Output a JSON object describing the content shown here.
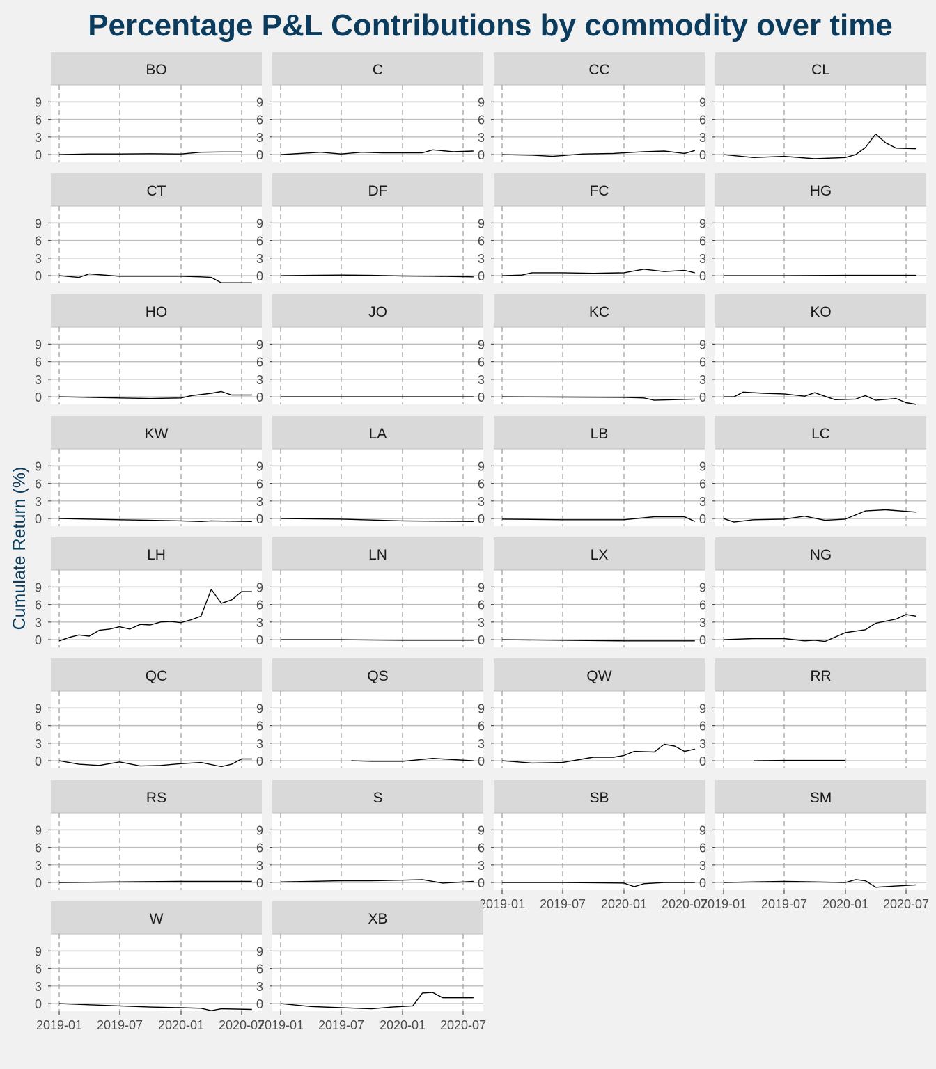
{
  "chart_data": {
    "type": "line",
    "title": "Percentage P&L Contributions by commodity over time",
    "ylabel": "Cumulate Return (%)",
    "xlabel": "",
    "y_ticks": [
      "0",
      "3",
      "6",
      "9"
    ],
    "x_ticks": [
      "2019-01",
      "2019-07",
      "2020-01",
      "2020-07"
    ],
    "grid": true,
    "colors": {
      "title": "#0b3c5d",
      "ylabel": "#0b3c5d",
      "line": "#000000",
      "strip": "#d9d9d9",
      "panel": "#ffffff"
    },
    "panels": [
      {
        "name": "BO",
        "x": [
          "2019-01",
          "2019-04",
          "2019-07",
          "2019-10",
          "2020-01",
          "2020-03",
          "2020-05",
          "2020-07"
        ],
        "y": [
          0,
          0.1,
          0.1,
          0.15,
          0.1,
          0.4,
          0.45,
          0.45
        ]
      },
      {
        "name": "C",
        "x": [
          "2019-01",
          "2019-03",
          "2019-05",
          "2019-07",
          "2019-09",
          "2019-11",
          "2020-01",
          "2020-03",
          "2020-04",
          "2020-06",
          "2020-08"
        ],
        "y": [
          0,
          0.2,
          0.4,
          0.1,
          0.4,
          0.3,
          0.3,
          0.3,
          0.8,
          0.5,
          0.6
        ]
      },
      {
        "name": "CC",
        "x": [
          "2019-01",
          "2019-04",
          "2019-06",
          "2019-09",
          "2019-12",
          "2020-03",
          "2020-05",
          "2020-07",
          "2020-08"
        ],
        "y": [
          0,
          -0.1,
          -0.3,
          0.1,
          0.2,
          0.5,
          0.6,
          0.2,
          0.7
        ]
      },
      {
        "name": "CL",
        "x": [
          "2019-01",
          "2019-04",
          "2019-07",
          "2019-10",
          "2020-01",
          "2020-02",
          "2020-03",
          "2020-04",
          "2020-05",
          "2020-06",
          "2020-08"
        ],
        "y": [
          0,
          -0.5,
          -0.3,
          -0.7,
          -0.5,
          0,
          1.2,
          3.5,
          2,
          1.1,
          1
        ]
      },
      {
        "name": "CT",
        "x": [
          "2019-01",
          "2019-03",
          "2019-04",
          "2019-07",
          "2019-10",
          "2020-01",
          "2020-03",
          "2020-04",
          "2020-05",
          "2020-08"
        ],
        "y": [
          0,
          -0.3,
          0.3,
          -0.1,
          -0.1,
          -0.1,
          -0.2,
          -0.3,
          -1.2,
          -1.2
        ]
      },
      {
        "name": "DF",
        "x": [
          "2019-01",
          "2019-04",
          "2019-07",
          "2019-10",
          "2020-01",
          "2020-04",
          "2020-08"
        ],
        "y": [
          0,
          0.05,
          0.1,
          0.05,
          -0.05,
          -0.1,
          -0.2
        ]
      },
      {
        "name": "FC",
        "x": [
          "2019-01",
          "2019-03",
          "2019-04",
          "2019-07",
          "2019-10",
          "2020-01",
          "2020-03",
          "2020-05",
          "2020-07",
          "2020-08"
        ],
        "y": [
          0,
          0.1,
          0.5,
          0.5,
          0.4,
          0.5,
          1.1,
          0.7,
          0.9,
          0.5
        ]
      },
      {
        "name": "HG",
        "x": [
          "2019-01",
          "2019-07",
          "2020-01",
          "2020-08"
        ],
        "y": [
          0,
          0,
          0.05,
          0.05
        ]
      },
      {
        "name": "HO",
        "x": [
          "2019-01",
          "2019-07",
          "2019-10",
          "2020-01",
          "2020-02",
          "2020-04",
          "2020-05",
          "2020-06",
          "2020-08"
        ],
        "y": [
          0,
          -0.2,
          -0.3,
          -0.2,
          0.2,
          0.6,
          0.9,
          0.3,
          0.3
        ]
      },
      {
        "name": "JO",
        "x": [
          "2019-01",
          "2019-07",
          "2020-01",
          "2020-08"
        ],
        "y": [
          0,
          0,
          0,
          0
        ]
      },
      {
        "name": "KC",
        "x": [
          "2019-01",
          "2019-07",
          "2020-01",
          "2020-03",
          "2020-04",
          "2020-08"
        ],
        "y": [
          0,
          -0.05,
          -0.1,
          -0.2,
          -0.6,
          -0.4
        ]
      },
      {
        "name": "KO",
        "x": [
          "2019-01",
          "2019-02",
          "2019-03",
          "2019-05",
          "2019-07",
          "2019-09",
          "2019-10",
          "2019-12",
          "2020-02",
          "2020-03",
          "2020-04",
          "2020-06",
          "2020-07",
          "2020-08"
        ],
        "y": [
          0,
          0,
          0.8,
          0.6,
          0.5,
          0.1,
          0.7,
          -0.5,
          -0.4,
          0.2,
          -0.6,
          -0.3,
          -1,
          -1.3
        ]
      },
      {
        "name": "KW",
        "x": [
          "2019-01",
          "2019-04",
          "2019-07",
          "2019-10",
          "2020-01",
          "2020-03",
          "2020-04",
          "2020-08"
        ],
        "y": [
          0,
          -0.1,
          -0.2,
          -0.3,
          -0.4,
          -0.5,
          -0.4,
          -0.5
        ]
      },
      {
        "name": "LA",
        "x": [
          "2019-01",
          "2019-07",
          "2020-01",
          "2020-08"
        ],
        "y": [
          0,
          -0.1,
          -0.4,
          -0.5
        ]
      },
      {
        "name": "LB",
        "x": [
          "2019-01",
          "2019-07",
          "2020-01",
          "2020-04",
          "2020-07",
          "2020-08"
        ],
        "y": [
          -0.1,
          -0.2,
          -0.2,
          0.3,
          0.3,
          -0.5
        ]
      },
      {
        "name": "LC",
        "x": [
          "2019-01",
          "2019-02",
          "2019-04",
          "2019-07",
          "2019-09",
          "2019-11",
          "2020-01",
          "2020-03",
          "2020-05",
          "2020-08"
        ],
        "y": [
          0,
          -0.6,
          -0.2,
          -0.1,
          0.4,
          -0.3,
          -0.1,
          1.3,
          1.5,
          1.1
        ]
      },
      {
        "name": "LH",
        "x": [
          "2019-01",
          "2019-02",
          "2019-03",
          "2019-04",
          "2019-05",
          "2019-06",
          "2019-07",
          "2019-08",
          "2019-09",
          "2019-10",
          "2019-11",
          "2019-12",
          "2020-01",
          "2020-02",
          "2020-03",
          "2020-04",
          "2020-05",
          "2020-06",
          "2020-07",
          "2020-08"
        ],
        "y": [
          -0.2,
          0.4,
          0.8,
          0.6,
          1.6,
          1.8,
          2.2,
          1.8,
          2.6,
          2.5,
          3,
          3.1,
          2.9,
          3.4,
          4,
          8.6,
          6.2,
          6.8,
          8.2,
          8.2
        ]
      },
      {
        "name": "LN",
        "x": [
          "2019-01",
          "2019-07",
          "2020-01",
          "2020-08"
        ],
        "y": [
          0,
          0,
          -0.1,
          -0.1
        ]
      },
      {
        "name": "LX",
        "x": [
          "2019-01",
          "2019-07",
          "2020-01",
          "2020-08"
        ],
        "y": [
          0,
          -0.1,
          -0.2,
          -0.2
        ]
      },
      {
        "name": "NG",
        "x": [
          "2019-01",
          "2019-04",
          "2019-07",
          "2019-09",
          "2019-10",
          "2019-11",
          "2020-01",
          "2020-03",
          "2020-04",
          "2020-06",
          "2020-07",
          "2020-08"
        ],
        "y": [
          0,
          0.2,
          0.2,
          -0.2,
          -0.1,
          -0.3,
          1.2,
          1.7,
          2.8,
          3.5,
          4.3,
          4
        ]
      },
      {
        "name": "QC",
        "x": [
          "2019-01",
          "2019-03",
          "2019-05",
          "2019-07",
          "2019-09",
          "2019-11",
          "2020-01",
          "2020-03",
          "2020-05",
          "2020-06",
          "2020-07",
          "2020-08"
        ],
        "y": [
          0,
          -0.6,
          -0.8,
          -0.2,
          -0.9,
          -0.8,
          -0.5,
          -0.3,
          -1,
          -0.6,
          0.3,
          0.3
        ]
      },
      {
        "name": "QS",
        "x": [
          "2019-08",
          "2019-10",
          "2020-01",
          "2020-04",
          "2020-06",
          "2020-08"
        ],
        "y": [
          0,
          -0.1,
          -0.1,
          0.4,
          0.2,
          0
        ]
      },
      {
        "name": "QW",
        "x": [
          "2019-01",
          "2019-04",
          "2019-07",
          "2019-10",
          "2019-12",
          "2020-01",
          "2020-02",
          "2020-04",
          "2020-05",
          "2020-06",
          "2020-07",
          "2020-08"
        ],
        "y": [
          0,
          -0.4,
          -0.3,
          0.6,
          0.6,
          0.9,
          1.6,
          1.5,
          2.8,
          2.5,
          1.6,
          2
        ]
      },
      {
        "name": "RR",
        "x": [
          "2019-04",
          "2019-07",
          "2019-10",
          "2020-01"
        ],
        "y": [
          0,
          0.05,
          0.05,
          0.05
        ]
      },
      {
        "name": "RS",
        "x": [
          "2019-01",
          "2019-07",
          "2020-01",
          "2020-08"
        ],
        "y": [
          0,
          0.1,
          0.2,
          0.2
        ]
      },
      {
        "name": "S",
        "x": [
          "2019-01",
          "2019-04",
          "2019-07",
          "2019-10",
          "2020-01",
          "2020-03",
          "2020-05",
          "2020-08"
        ],
        "y": [
          0.1,
          0.2,
          0.3,
          0.3,
          0.4,
          0.5,
          -0.1,
          0.2
        ]
      },
      {
        "name": "SB",
        "x": [
          "2019-01",
          "2019-07",
          "2020-01",
          "2020-02",
          "2020-03",
          "2020-05",
          "2020-08"
        ],
        "y": [
          0,
          0,
          -0.1,
          -0.7,
          -0.2,
          0,
          0
        ]
      },
      {
        "name": "SM",
        "x": [
          "2019-01",
          "2019-04",
          "2019-07",
          "2019-10",
          "2020-01",
          "2020-02",
          "2020-03",
          "2020-04",
          "2020-06",
          "2020-08"
        ],
        "y": [
          0,
          0.1,
          0.2,
          0.1,
          0,
          0.5,
          0.3,
          -0.8,
          -0.6,
          -0.4
        ]
      },
      {
        "name": "W",
        "x": [
          "2019-01",
          "2019-04",
          "2019-07",
          "2019-10",
          "2020-01",
          "2020-03",
          "2020-04",
          "2020-05",
          "2020-08"
        ],
        "y": [
          0,
          -0.2,
          -0.4,
          -0.6,
          -0.7,
          -0.8,
          -1.2,
          -0.9,
          -1
        ]
      },
      {
        "name": "XB",
        "x": [
          "2019-01",
          "2019-04",
          "2019-07",
          "2019-10",
          "2019-12",
          "2020-02",
          "2020-03",
          "2020-04",
          "2020-05",
          "2020-06",
          "2020-08"
        ],
        "y": [
          0,
          -0.5,
          -0.7,
          -0.9,
          -0.6,
          -0.4,
          1.8,
          1.9,
          1,
          1,
          1
        ]
      }
    ]
  }
}
